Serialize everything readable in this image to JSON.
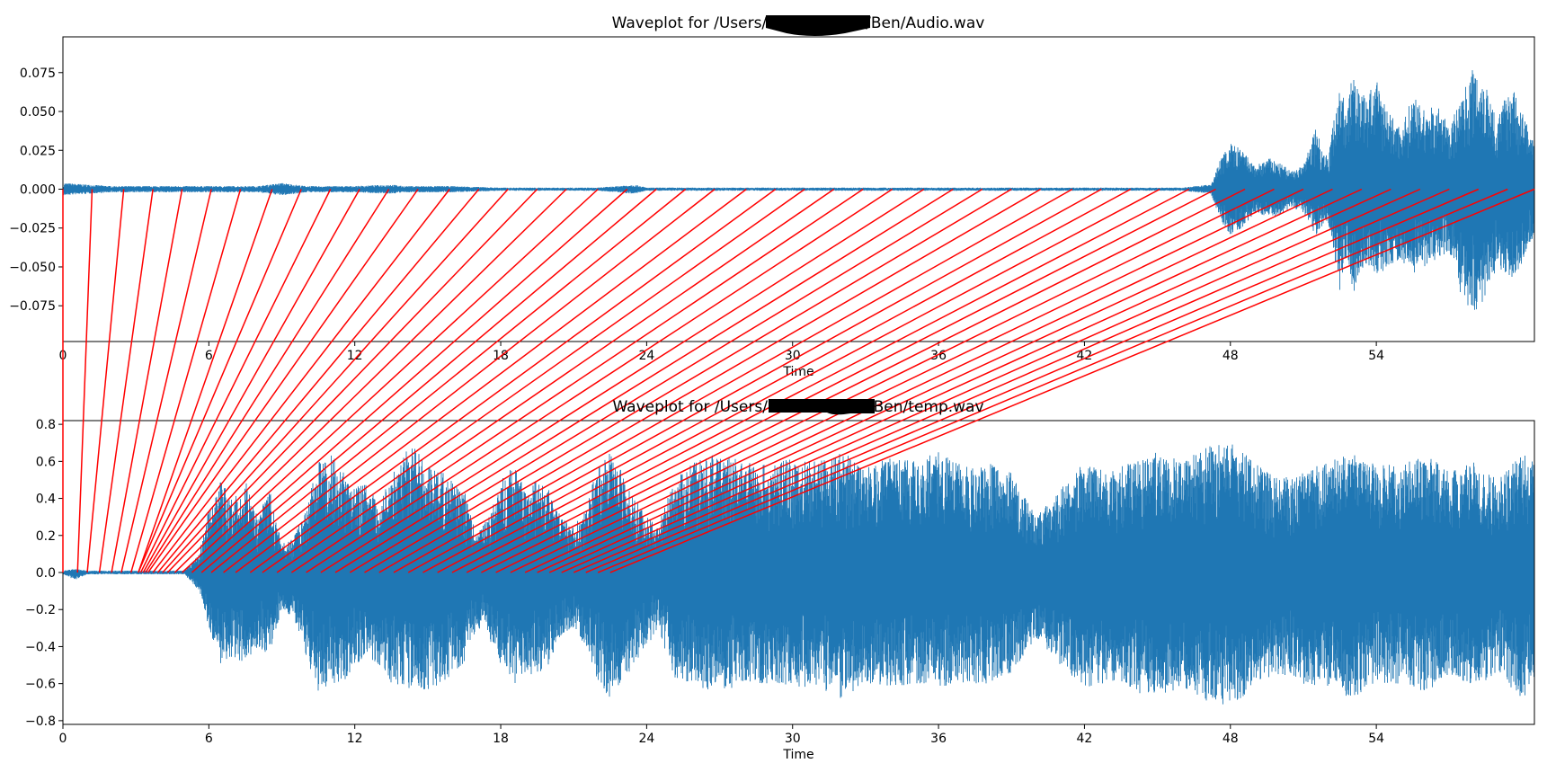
{
  "chart_data": [
    {
      "type": "area",
      "title_prefix": "Waveplot for /Users/",
      "title_suffix": "/Ben/Audio.wav",
      "xlabel": "Time",
      "ylabel": "",
      "xlim": [
        0,
        60.5
      ],
      "ylim": [
        -0.098,
        0.098
      ],
      "xticks": [
        0,
        6,
        12,
        18,
        24,
        30,
        36,
        42,
        48,
        54
      ],
      "xtick_labels": [
        "0",
        "6",
        "12",
        "18",
        "24",
        "30",
        "36",
        "42",
        "48",
        "54"
      ],
      "yticks": [
        0.075,
        0.05,
        0.025,
        0.0,
        -0.025,
        -0.05,
        -0.075
      ],
      "ytick_labels": [
        "0.075",
        "0.050",
        "0.025",
        "0.000",
        "−0.025",
        "−0.050",
        "−0.075"
      ],
      "grid": false,
      "series": [
        {
          "color": "#1f77b4",
          "envelope_time": [
            0,
            2,
            4,
            6,
            8,
            9,
            10,
            12,
            13.5,
            14,
            16,
            18,
            20,
            22,
            23.5,
            24,
            26,
            28,
            29,
            30,
            32,
            34,
            36,
            38,
            40,
            42,
            44,
            46,
            47.2,
            47.6,
            48,
            48.5,
            49,
            49.6,
            50,
            50.5,
            51,
            51.5,
            52,
            52.5,
            52.8,
            53,
            53.5,
            54,
            54.5,
            55,
            55.5,
            56,
            56.5,
            57,
            57.5,
            58,
            58.5,
            59,
            59.5,
            60,
            60.5
          ],
          "envelope_upper": [
            0.004,
            0.002,
            0.002,
            0.002,
            0.002,
            0.004,
            0.002,
            0.002,
            0.003,
            0.002,
            0.002,
            0.001,
            0.001,
            0.001,
            0.003,
            0.001,
            0.001,
            0.001,
            0.001,
            0.001,
            0.001,
            0.001,
            0.001,
            0.001,
            0.001,
            0.001,
            0.001,
            0.001,
            0.003,
            0.02,
            0.03,
            0.025,
            0.015,
            0.02,
            0.017,
            0.012,
            0.015,
            0.04,
            0.02,
            0.07,
            0.05,
            0.075,
            0.06,
            0.07,
            0.05,
            0.04,
            0.06,
            0.05,
            0.055,
            0.04,
            0.06,
            0.08,
            0.07,
            0.045,
            0.07,
            0.05,
            0.03
          ],
          "envelope_lower": [
            -0.004,
            -0.002,
            -0.002,
            -0.002,
            -0.002,
            -0.004,
            -0.002,
            -0.002,
            -0.003,
            -0.002,
            -0.002,
            -0.001,
            -0.001,
            -0.001,
            -0.003,
            -0.001,
            -0.001,
            -0.001,
            -0.001,
            -0.001,
            -0.001,
            -0.001,
            -0.001,
            -0.001,
            -0.001,
            -0.001,
            -0.001,
            -0.001,
            -0.003,
            -0.02,
            -0.03,
            -0.025,
            -0.015,
            -0.018,
            -0.017,
            -0.012,
            -0.015,
            -0.03,
            -0.02,
            -0.065,
            -0.04,
            -0.07,
            -0.05,
            -0.06,
            -0.05,
            -0.045,
            -0.055,
            -0.05,
            -0.045,
            -0.04,
            -0.07,
            -0.08,
            -0.07,
            -0.05,
            -0.06,
            -0.05,
            -0.03
          ]
        }
      ]
    },
    {
      "type": "area",
      "title_prefix": "Waveplot for /Users/",
      "title_suffix": "/Ben/temp.wav",
      "xlabel": "Time",
      "ylabel": "",
      "xlim": [
        0,
        60.5
      ],
      "ylim": [
        -0.82,
        0.82
      ],
      "xticks": [
        0,
        6,
        12,
        18,
        24,
        30,
        36,
        42,
        48,
        54
      ],
      "xtick_labels": [
        "0",
        "6",
        "12",
        "18",
        "24",
        "30",
        "36",
        "42",
        "48",
        "54"
      ],
      "yticks": [
        0.8,
        0.6,
        0.4,
        0.2,
        0.0,
        -0.2,
        -0.4,
        -0.6,
        -0.8
      ],
      "ytick_labels": [
        "0.8",
        "0.6",
        "0.4",
        "0.2",
        "0.0",
        "−0.2",
        "−0.4",
        "−0.6",
        "−0.8"
      ],
      "grid": false,
      "series": [
        {
          "color": "#1f77b4",
          "envelope_time": [
            0,
            0.5,
            1,
            2,
            3,
            4,
            5,
            5.6,
            6,
            6.5,
            7,
            7.5,
            8,
            8.5,
            9,
            9.5,
            10,
            10.5,
            11,
            11.5,
            12,
            12.5,
            13,
            13.5,
            14,
            14.5,
            15,
            15.5,
            16,
            16.5,
            17,
            17.5,
            18,
            18.5,
            19,
            19.5,
            20,
            20.5,
            21,
            21.5,
            22,
            22.5,
            23,
            23.5,
            24,
            24.5,
            25,
            25.5,
            26,
            27,
            28,
            29,
            30,
            31,
            32,
            33,
            34,
            35,
            36,
            37,
            38,
            39,
            40,
            41,
            42,
            43,
            44,
            45,
            46,
            47,
            48,
            49,
            50,
            51,
            52,
            53,
            54,
            55,
            56,
            57,
            58,
            59,
            60,
            60.5
          ],
          "envelope_upper": [
            0.01,
            0.02,
            0.01,
            0.01,
            0.01,
            0.01,
            0.01,
            0.1,
            0.35,
            0.5,
            0.4,
            0.5,
            0.3,
            0.45,
            0.15,
            0.2,
            0.35,
            0.6,
            0.65,
            0.55,
            0.45,
            0.5,
            0.35,
            0.55,
            0.65,
            0.68,
            0.6,
            0.55,
            0.5,
            0.45,
            0.2,
            0.3,
            0.5,
            0.6,
            0.45,
            0.5,
            0.45,
            0.3,
            0.25,
            0.35,
            0.6,
            0.65,
            0.55,
            0.4,
            0.3,
            0.25,
            0.5,
            0.55,
            0.6,
            0.65,
            0.6,
            0.58,
            0.62,
            0.6,
            0.65,
            0.58,
            0.62,
            0.6,
            0.65,
            0.58,
            0.6,
            0.55,
            0.3,
            0.45,
            0.6,
            0.55,
            0.6,
            0.65,
            0.6,
            0.68,
            0.7,
            0.6,
            0.5,
            0.55,
            0.6,
            0.65,
            0.6,
            0.58,
            0.65,
            0.55,
            0.6,
            0.5,
            0.65,
            0.6
          ],
          "envelope_lower": [
            -0.01,
            -0.04,
            -0.01,
            -0.01,
            -0.01,
            -0.01,
            -0.01,
            -0.1,
            -0.3,
            -0.5,
            -0.45,
            -0.5,
            -0.4,
            -0.45,
            -0.2,
            -0.25,
            -0.45,
            -0.65,
            -0.6,
            -0.6,
            -0.5,
            -0.45,
            -0.5,
            -0.6,
            -0.65,
            -0.6,
            -0.65,
            -0.6,
            -0.55,
            -0.5,
            -0.3,
            -0.35,
            -0.5,
            -0.62,
            -0.55,
            -0.55,
            -0.5,
            -0.35,
            -0.3,
            -0.4,
            -0.6,
            -0.68,
            -0.62,
            -0.5,
            -0.4,
            -0.3,
            -0.55,
            -0.6,
            -0.62,
            -0.65,
            -0.6,
            -0.6,
            -0.62,
            -0.62,
            -0.68,
            -0.6,
            -0.62,
            -0.6,
            -0.62,
            -0.6,
            -0.6,
            -0.55,
            -0.35,
            -0.5,
            -0.62,
            -0.6,
            -0.65,
            -0.68,
            -0.62,
            -0.7,
            -0.72,
            -0.62,
            -0.55,
            -0.6,
            -0.62,
            -0.68,
            -0.6,
            -0.6,
            -0.65,
            -0.55,
            -0.62,
            -0.55,
            -0.68,
            -0.62
          ]
        }
      ]
    }
  ],
  "alignment_lines": {
    "color": "#ff0000",
    "pairs_time": [
      [
        0.0,
        0.0
      ],
      [
        1.2,
        0.6
      ],
      [
        2.5,
        1.0
      ],
      [
        3.7,
        1.5
      ],
      [
        4.9,
        2.0
      ],
      [
        6.1,
        2.4
      ],
      [
        7.3,
        2.8
      ],
      [
        8.6,
        3.1
      ],
      [
        9.8,
        3.1
      ],
      [
        11.0,
        3.2
      ],
      [
        12.2,
        3.3
      ],
      [
        13.4,
        3.4
      ],
      [
        14.6,
        3.5
      ],
      [
        15.9,
        3.7
      ],
      [
        17.1,
        3.9
      ],
      [
        18.3,
        4.1
      ],
      [
        19.5,
        4.3
      ],
      [
        20.7,
        4.6
      ],
      [
        22.0,
        4.9
      ],
      [
        23.2,
        5.3
      ],
      [
        24.4,
        5.7
      ],
      [
        25.6,
        6.1
      ],
      [
        26.8,
        6.6
      ],
      [
        28.1,
        7.1
      ],
      [
        29.3,
        7.7
      ],
      [
        30.5,
        8.2
      ],
      [
        31.7,
        8.8
      ],
      [
        32.9,
        9.4
      ],
      [
        34.1,
        10.0
      ],
      [
        35.4,
        10.6
      ],
      [
        36.6,
        11.2
      ],
      [
        37.8,
        11.8
      ],
      [
        39.0,
        12.4
      ],
      [
        40.2,
        13.0
      ],
      [
        41.5,
        13.6
      ],
      [
        42.7,
        14.2
      ],
      [
        43.9,
        14.8
      ],
      [
        45.1,
        15.4
      ],
      [
        46.3,
        16.0
      ],
      [
        47.4,
        16.6
      ],
      [
        48.6,
        17.2
      ],
      [
        49.8,
        17.8
      ],
      [
        51.0,
        18.4
      ],
      [
        52.2,
        19.0
      ],
      [
        53.4,
        19.5
      ],
      [
        54.6,
        20.0
      ],
      [
        55.8,
        20.5
      ],
      [
        57.0,
        21.0
      ],
      [
        58.2,
        21.5
      ],
      [
        59.4,
        22.0
      ],
      [
        60.5,
        22.5
      ]
    ]
  }
}
